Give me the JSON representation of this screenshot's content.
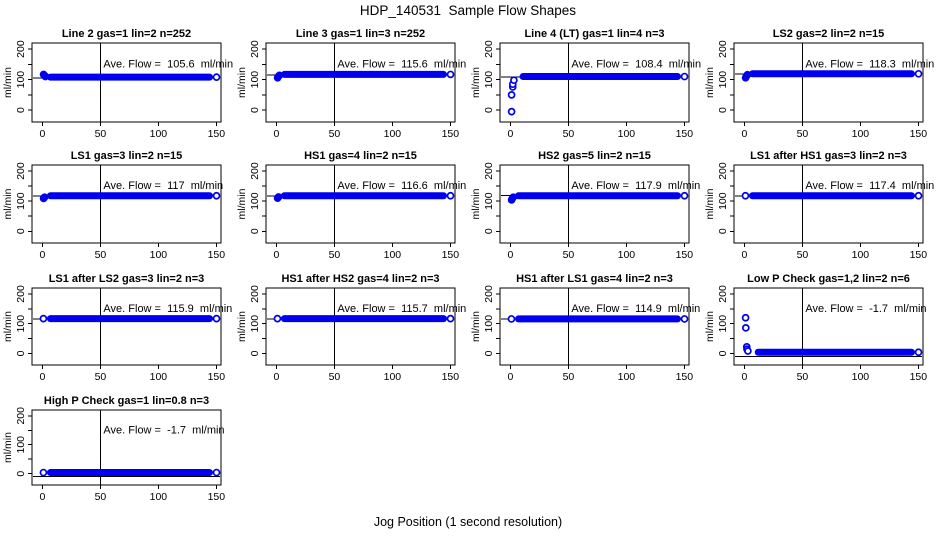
{
  "title": "HDP_140531  Sample Flow Shapes",
  "xlabel": "Jog Position (1 second resolution)",
  "chart_data": {
    "type": "scatter",
    "grid": false,
    "point_color": "#0000EE",
    "axis_color": "#000000",
    "background": "#FFFFFF",
    "ylabel": "ml/min",
    "x_ticks": [
      0,
      50,
      100,
      150
    ],
    "y_ticks": [
      0,
      100,
      200
    ],
    "y_minor_ticks": [
      50,
      150
    ],
    "xlim": [
      -9,
      154
    ],
    "ylim": [
      -39,
      220
    ],
    "vline_x": 50,
    "layout_hint": "4x4 grid of panels, 13 panels total, last row has 1 panel",
    "panels": [
      {
        "title": "Line 2 gas=1 lin=2 n=252",
        "ave_flow": 105.6,
        "ave_label": "Ave. Flow =  105.6  ml/min",
        "line_y": 105.6,
        "band_y": 108,
        "band_x0": 0,
        "band_x1": 151,
        "pre_style": "filled",
        "pre_points": [
          [
            1,
            117
          ],
          [
            1.8,
            113
          ],
          [
            2.6,
            110
          ]
        ]
      },
      {
        "title": "Line 3 gas=1 lin=3 n=252",
        "ave_flow": 115.6,
        "ave_label": "Ave. Flow =  115.6  ml/min",
        "line_y": 115.6,
        "band_y": 117,
        "band_x0": 0,
        "band_x1": 151,
        "pre_style": "filled",
        "pre_points": [
          [
            1,
            106
          ],
          [
            1.8,
            111
          ],
          [
            2.6,
            114
          ]
        ]
      },
      {
        "title": "Line 4 (LT) gas=1 lin=4 n=3",
        "ave_flow": 108.4,
        "ave_label": "Ave. Flow =  108.4  ml/min",
        "line_y": 108.4,
        "band_y": 110,
        "band_x0": 4,
        "band_x1": 151,
        "pre_style": "open",
        "pre_points": [
          [
            1,
            -5
          ],
          [
            1,
            50
          ],
          [
            2,
            76
          ],
          [
            2,
            85
          ],
          [
            3,
            98
          ]
        ]
      },
      {
        "title": "LS2 gas=2 lin=2 n=15",
        "ave_flow": 118.3,
        "ave_label": "Ave. Flow =  118.3  ml/min",
        "line_y": 118.3,
        "band_y": 119,
        "band_x0": 0,
        "band_x1": 151,
        "pre_style": "filled",
        "pre_points": [
          [
            1,
            106
          ],
          [
            1.8,
            112
          ],
          [
            2.6,
            116
          ]
        ]
      },
      {
        "title": "LS1 gas=3 lin=2 n=15",
        "ave_flow": 117,
        "ave_label": "Ave. Flow =  117  ml/min",
        "line_y": 117,
        "band_y": 118,
        "band_x0": 0,
        "band_x1": 151,
        "pre_style": "filled",
        "pre_points": [
          [
            1,
            109
          ],
          [
            1.8,
            113
          ]
        ]
      },
      {
        "title": "HS1 gas=4 lin=2 n=15",
        "ave_flow": 116.6,
        "ave_label": "Ave. Flow =  116.6  ml/min",
        "line_y": 116.6,
        "band_y": 118,
        "band_x0": 0,
        "band_x1": 151,
        "pre_style": "filled",
        "pre_points": [
          [
            1,
            110
          ],
          [
            1.8,
            114
          ]
        ]
      },
      {
        "title": "HS2 gas=5 lin=2 n=15",
        "ave_flow": 117.9,
        "ave_label": "Ave. Flow =  117.9  ml/min",
        "line_y": 117.9,
        "band_y": 118,
        "band_x0": 0,
        "band_x1": 151,
        "pre_style": "filled",
        "pre_points": [
          [
            1,
            104
          ],
          [
            1.6,
            109
          ],
          [
            2.4,
            113
          ]
        ]
      },
      {
        "title": "LS1 after HS1 gas=3 lin=2 n=3",
        "ave_flow": 117.4,
        "ave_label": "Ave. Flow =  117.4  ml/min",
        "line_y": 117.4,
        "band_y": 118,
        "band_x0": 0,
        "band_x1": 151,
        "pre_style": "open",
        "pre_points": []
      },
      {
        "title": "LS1 after LS2 gas=3 lin=2 n=3",
        "ave_flow": 115.9,
        "ave_label": "Ave. Flow =  115.9  ml/min",
        "line_y": 115.9,
        "band_y": 117,
        "band_x0": 0,
        "band_x1": 151,
        "pre_style": "open",
        "pre_points": []
      },
      {
        "title": "HS1 after HS2 gas=4 lin=2 n=3",
        "ave_flow": 115.7,
        "ave_label": "Ave. Flow =  115.7  ml/min",
        "line_y": 115.7,
        "band_y": 117,
        "band_x0": 0,
        "band_x1": 151,
        "pre_style": "open",
        "pre_points": []
      },
      {
        "title": "HS1 after LS1 gas=4 lin=2 n=3",
        "ave_flow": 114.9,
        "ave_label": "Ave. Flow =  114.9  ml/min",
        "line_y": 114.9,
        "band_y": 116,
        "band_x0": 0,
        "band_x1": 151,
        "pre_style": "open",
        "pre_points": []
      },
      {
        "title": "Low P Check gas=1,2 lin=2 n=6",
        "ave_flow": -1.7,
        "ave_label": "Ave. Flow =  -1.7  ml/min",
        "line_y": -10,
        "band_y": 4,
        "band_x0": 5,
        "band_x1": 151,
        "pre_style": "open",
        "pre_points": [
          [
            1,
            120
          ],
          [
            1.2,
            86
          ],
          [
            2,
            22
          ],
          [
            2.2,
            14
          ],
          [
            3,
            8
          ]
        ]
      },
      {
        "title": "High P Check gas=1 lin=0.8 n=3",
        "ave_flow": -1.7,
        "ave_label": "Ave. Flow =  -1.7  ml/min",
        "line_y": -10,
        "band_y": 4,
        "band_x0": 0,
        "band_x1": 151,
        "pre_style": "open",
        "pre_points": []
      }
    ]
  }
}
